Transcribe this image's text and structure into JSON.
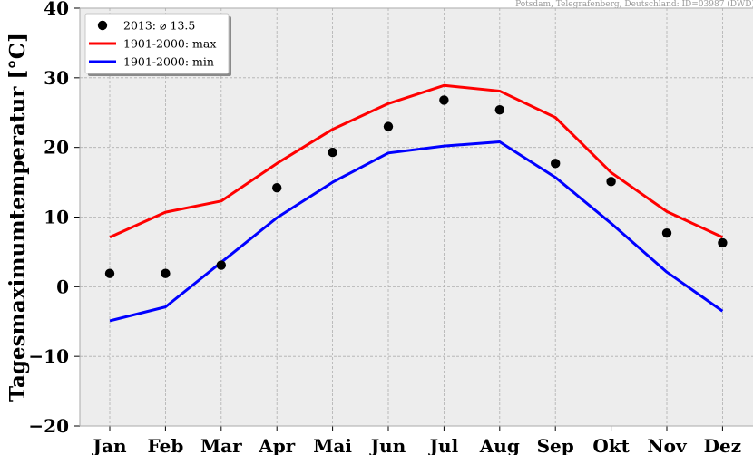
{
  "source_note": "Potsdam, Telegrafenberg, Deutschland: ID=03987 (DWD)",
  "chart_data": {
    "type": "line",
    "categories": [
      "Jan",
      "Feb",
      "Mar",
      "Apr",
      "Mai",
      "Jun",
      "Jul",
      "Aug",
      "Sep",
      "Okt",
      "Nov",
      "Dez"
    ],
    "ylabel": "Tagesmaximumtemperatur [°C]",
    "ylim": [
      -20,
      40
    ],
    "yticks": [
      -20,
      -10,
      0,
      10,
      20,
      30,
      40
    ],
    "ytick_labels": [
      "−20",
      "−10",
      "0",
      "10",
      "20",
      "30",
      "40"
    ],
    "grid": true,
    "legend_position": "top-left",
    "series": [
      {
        "name": "2013: ⌀ 13.5",
        "kind": "scatter",
        "color": "#000000",
        "values": [
          1.9,
          1.9,
          3.1,
          14.2,
          19.3,
          23.0,
          26.8,
          25.4,
          17.7,
          15.1,
          7.7,
          6.3
        ]
      },
      {
        "name": "1901-2000: max",
        "kind": "line",
        "color": "#ff0000",
        "values": [
          7.1,
          10.7,
          12.3,
          17.7,
          22.6,
          26.3,
          28.9,
          28.1,
          24.3,
          16.4,
          10.8,
          7.1
        ]
      },
      {
        "name": "1901-2000: min",
        "kind": "line",
        "color": "#0000ff",
        "values": [
          -4.9,
          -2.9,
          3.5,
          9.9,
          15.0,
          19.2,
          20.2,
          20.8,
          15.7,
          9.1,
          2.1,
          -3.5
        ]
      }
    ]
  }
}
